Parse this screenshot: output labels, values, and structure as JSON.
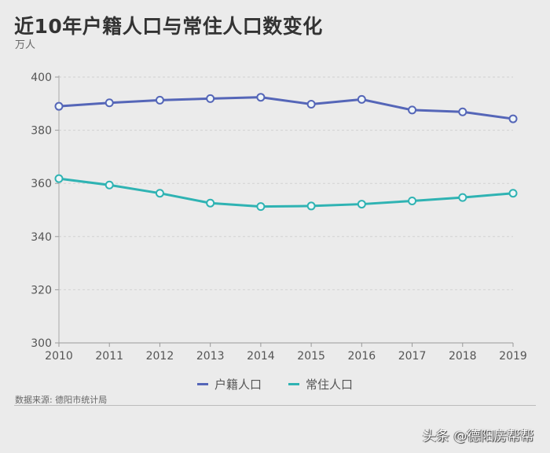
{
  "chart_data": {
    "type": "line",
    "title": "近10年户籍人口与常住人口数变化",
    "ylabel": "万人",
    "xlabel": "",
    "x": [
      "2010",
      "2011",
      "2012",
      "2013",
      "2014",
      "2015",
      "2016",
      "2017",
      "2018",
      "2019"
    ],
    "yticks": [
      "300",
      "320",
      "340",
      "360",
      "380",
      "400"
    ],
    "ylim": [
      300,
      400
    ],
    "grid": true,
    "legend_position": "bottom",
    "series": [
      {
        "name": "户籍人口",
        "color": "#5566b8",
        "values": [
          389.0,
          390.3,
          391.3,
          391.9,
          392.4,
          389.8,
          391.6,
          387.6,
          386.9,
          384.3
        ]
      },
      {
        "name": "常住人口",
        "color": "#2fb3b3",
        "values": [
          361.8,
          359.4,
          356.3,
          352.6,
          351.3,
          351.5,
          352.2,
          353.4,
          354.7,
          356.3
        ]
      }
    ]
  },
  "source": "数据来源: 德阳市统计局",
  "watermark": "头条 @德阳房帮帮"
}
